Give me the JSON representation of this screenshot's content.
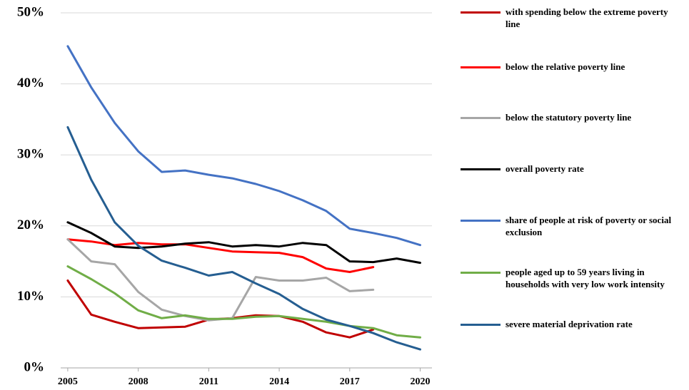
{
  "chart_data": {
    "type": "line",
    "x": [
      2005,
      2006,
      2007,
      2008,
      2009,
      2010,
      2011,
      2012,
      2013,
      2014,
      2015,
      2016,
      2017,
      2018,
      2019,
      2020
    ],
    "xlim": [
      2004.7,
      2020.5
    ],
    "xticks": [
      2005,
      2008,
      2011,
      2014,
      2017,
      2020
    ],
    "ylim": [
      0,
      50
    ],
    "yticks": [
      {
        "value": 0,
        "label": "0%"
      },
      {
        "value": 10,
        "label": "10%"
      },
      {
        "value": 20,
        "label": "20%"
      },
      {
        "value": 30,
        "label": "30%"
      },
      {
        "value": 40,
        "label": "40%"
      },
      {
        "value": 50,
        "label": "50%"
      }
    ],
    "grid": true,
    "legend": "right",
    "series": [
      {
        "name": "with spending below the extreme poverty line",
        "color": "#c00000",
        "values": [
          12.3,
          7.5,
          6.5,
          5.6,
          5.7,
          5.8,
          6.8,
          7.0,
          7.4,
          7.3,
          6.5,
          5.0,
          4.3,
          5.4,
          null,
          null
        ]
      },
      {
        "name": "below the relative poverty line",
        "color": "#ff0000",
        "values": [
          18.1,
          17.8,
          17.3,
          17.6,
          17.4,
          17.4,
          16.9,
          16.4,
          16.3,
          16.2,
          15.6,
          14.0,
          13.5,
          14.2,
          null,
          null
        ]
      },
      {
        "name": "below the statutory poverty line",
        "color": "#a6a6a6",
        "values": [
          18.1,
          15.0,
          14.6,
          10.7,
          8.2,
          7.3,
          6.7,
          7.0,
          12.8,
          12.3,
          12.3,
          12.7,
          10.8,
          11.0,
          null,
          null
        ]
      },
      {
        "name": "overall poverty rate",
        "color": "#000000",
        "values": [
          20.5,
          19.0,
          17.1,
          16.9,
          17.1,
          17.5,
          17.7,
          17.1,
          17.3,
          17.1,
          17.6,
          17.3,
          15.0,
          14.9,
          15.4,
          14.8
        ]
      },
      {
        "name": "share of people at risk of poverty or social exclusion",
        "color": "#4472c4",
        "values": [
          45.3,
          39.5,
          34.5,
          30.5,
          27.6,
          27.8,
          27.2,
          26.7,
          25.9,
          24.9,
          23.6,
          22.1,
          19.6,
          19.0,
          18.3,
          17.3
        ]
      },
      {
        "name": "people aged up to 59 years living in households with very low work intensity",
        "color": "#70ad47",
        "values": [
          14.3,
          12.5,
          10.5,
          8.1,
          7.0,
          7.4,
          6.9,
          6.9,
          7.2,
          7.3,
          6.9,
          6.5,
          5.9,
          5.6,
          4.6,
          4.3
        ]
      },
      {
        "name": "severe material deprivation rate",
        "color": "#255e91",
        "values": [
          33.9,
          26.5,
          20.5,
          17.2,
          15.1,
          14.1,
          13.0,
          13.5,
          11.9,
          10.4,
          8.3,
          6.8,
          5.9,
          4.9,
          3.6,
          2.6
        ]
      }
    ]
  }
}
